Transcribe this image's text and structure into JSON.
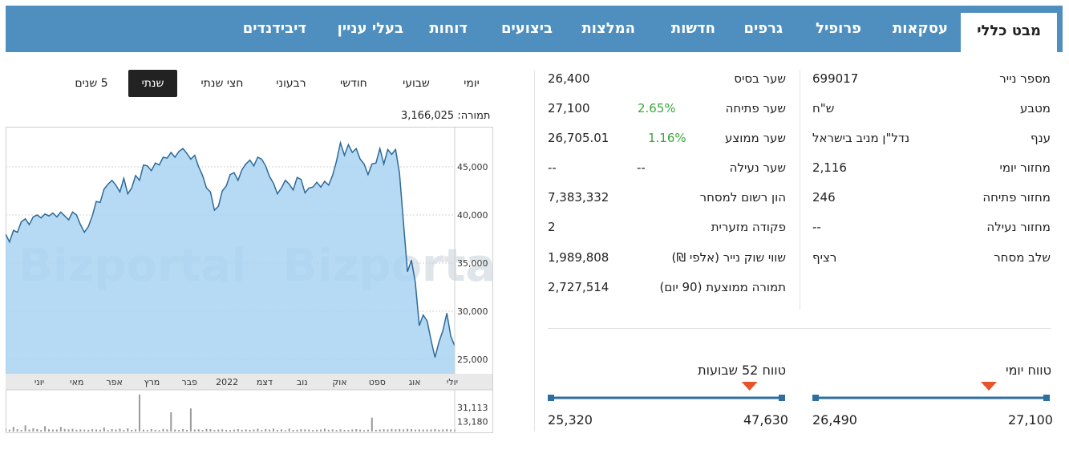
{
  "tabs": [
    "מבט כללי",
    "עסקאות",
    "פרופיל",
    "גרפים",
    "חדשות",
    "המלצות",
    "ביצועים",
    "דוחות",
    "בעלי עניין",
    "דיבידנדים"
  ],
  "right_table": [
    {
      "label": "מספר נייר",
      "value": "699017"
    },
    {
      "label": "מטבע",
      "value": "ש\"ח"
    },
    {
      "label": "ענף",
      "value": "נדל\"ן מניב בישראל"
    },
    {
      "label": "מחזור יומי",
      "value": "2,116"
    },
    {
      "label": "מחזור פתיחה",
      "value": "246"
    },
    {
      "label": "מחזור נעילה",
      "value": "--"
    },
    {
      "label": "שלב מסחר",
      "value": "רציף"
    }
  ],
  "mid_table": [
    {
      "label": "שער בסיס",
      "pct": "",
      "value": "26,400"
    },
    {
      "label": "שער פתיחה",
      "pct": "2.65%",
      "value": "27,100"
    },
    {
      "label": "שער ממוצע",
      "pct": "1.16%",
      "value": "26,705.01"
    },
    {
      "label": "שער נעילה",
      "pct": "--",
      "value": "--"
    },
    {
      "label": "הון רשום למסחר",
      "pct": "",
      "value": "7,383,332"
    },
    {
      "label": "פקודה מזערית",
      "pct": "",
      "value": "2"
    },
    {
      "label": "שווי שוק נייר (אלפי ₪)",
      "pct": "",
      "value": "1,989,808"
    },
    {
      "label": "תמורה ממוצעת (90 יום)",
      "pct": "",
      "value": "2,727,514"
    }
  ],
  "daily_range": {
    "title": "טווח יומי",
    "high": "27,100",
    "low": "26,490",
    "marker_fraction": 0.75
  },
  "week52_range": {
    "title": "טווח 52 שבועות",
    "high": "47,630",
    "low": "25,320",
    "marker_fraction": 0.86
  },
  "periods": {
    "items": [
      "יומי",
      "שבועי",
      "חודשי",
      "רבעוני",
      "חצי שנתי",
      "שנתי",
      "5 שנים"
    ],
    "active_index": 5
  },
  "turnover": {
    "label": "תמורה:",
    "value": "3,166,025"
  },
  "chart_data": {
    "type": "area",
    "watermark": "Bizportal",
    "y_ticks": [
      "45,000",
      "40,000",
      "35,000",
      "30,000",
      "25,000"
    ],
    "ylim": [
      23500,
      48500
    ],
    "x_ticks": [
      "יולי",
      "אוג",
      "ספט",
      "אוק",
      "נוב",
      "דצמ",
      "2022",
      "פבר",
      "מרץ",
      "אפר",
      "מאי",
      "יוני"
    ],
    "values": [
      38000,
      37200,
      38400,
      38200,
      39300,
      39600,
      39000,
      39800,
      40000,
      39700,
      40100,
      39900,
      40200,
      39800,
      40300,
      39900,
      39500,
      40300,
      40000,
      39000,
      38200,
      38800,
      39900,
      41400,
      41300,
      42700,
      43200,
      43600,
      43100,
      42400,
      43800,
      42200,
      42800,
      44100,
      43600,
      45200,
      45100,
      44600,
      45400,
      45200,
      46000,
      45900,
      46500,
      46000,
      46600,
      46900,
      46400,
      45800,
      46200,
      45000,
      44100,
      42800,
      42400,
      40500,
      40900,
      42500,
      43000,
      44200,
      44400,
      43600,
      44700,
      45300,
      45700,
      45100,
      46000,
      45800,
      45100,
      44000,
      43300,
      42200,
      42800,
      43600,
      43200,
      42600,
      43900,
      43700,
      42300,
      42800,
      42900,
      43400,
      42900,
      43500,
      43100,
      44100,
      45600,
      47500,
      46200,
      47300,
      46500,
      46900,
      45800,
      45300,
      44200,
      45300,
      45400,
      46900,
      45300,
      46800,
      46300,
      46800,
      44300,
      39200,
      34100,
      35300,
      33000,
      28500,
      29600,
      29000,
      27000,
      25200,
      26800,
      28000,
      29800,
      27400,
      26400
    ],
    "volume_ticks": [
      "31,113",
      "13,180"
    ],
    "volume_max": 50000,
    "volumes": [
      4000,
      2500,
      6000,
      3000,
      2000,
      8000,
      2500,
      4500,
      3200,
      2000,
      7000,
      3000,
      2500,
      2600,
      6000,
      3300,
      2800,
      3500,
      2300,
      2800,
      2500,
      2200,
      3000,
      2700,
      2400,
      5200,
      1800,
      3100,
      2600,
      3800,
      2000,
      4200,
      2200,
      2800,
      48000,
      2400,
      1900,
      3100,
      2200,
      1800,
      3400,
      2800,
      25000,
      2600,
      2100,
      3300,
      2200,
      30000,
      2500,
      2900,
      2000,
      3400,
      3100,
      2000,
      2600,
      2900,
      2200,
      1800,
      2500,
      3100,
      2300,
      2700,
      2200,
      2600,
      3600,
      1900,
      3300,
      2500,
      3800,
      2100,
      2900,
      1700,
      3700,
      2000,
      2400,
      3100,
      2800,
      2500,
      2000,
      2400,
      2600,
      3800,
      2300,
      2700,
      1900,
      2800,
      2200,
      2000,
      2700,
      3100,
      2500,
      1800,
      2400,
      18000,
      2200,
      2600,
      3000,
      2700,
      3400,
      2900,
      3300,
      2700,
      3400,
      3100,
      2500,
      2800,
      2600,
      2700,
      2800,
      3300,
      2400,
      2700,
      3100,
      2600,
      2800
    ]
  }
}
